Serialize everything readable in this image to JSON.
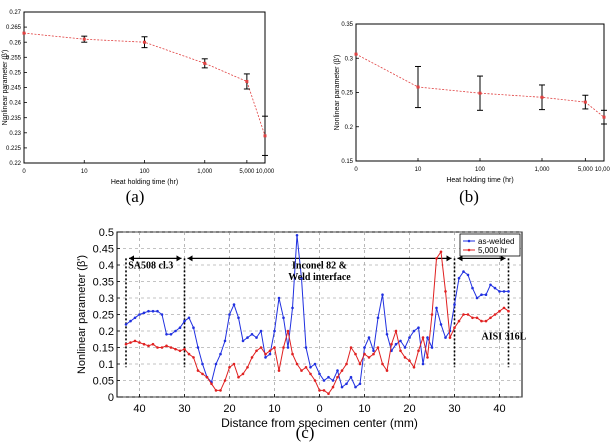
{
  "captions": {
    "a": "(a)",
    "b": "(b)",
    "c": "(c)"
  },
  "chart_data": [
    {
      "id": "a",
      "type": "line",
      "xscale": "log",
      "xlabel": "Heat holding time (hr)",
      "ylabel": "Nonlinear parameter (β')",
      "xlim": [
        1,
        10000
      ],
      "ylim": [
        0.22,
        0.27
      ],
      "xticks": [
        1,
        10,
        100,
        1000,
        5000,
        10000
      ],
      "xtick_labels": [
        "0",
        "10",
        "100",
        "1,000",
        "5,000",
        "10,000"
      ],
      "yticks": [
        0.22,
        0.225,
        0.23,
        0.235,
        0.24,
        0.245,
        0.25,
        0.255,
        0.26,
        0.265,
        0.27
      ],
      "ytick_labels": [
        "0.22",
        "0.225",
        "0.23",
        "0.235",
        "0.24",
        "0.245",
        "0.25",
        "0.255",
        "0.26",
        "0.265",
        "0.27"
      ],
      "grid": false,
      "series": [
        {
          "x": [
            1,
            10,
            100,
            1000,
            5000,
            10000
          ],
          "y": [
            0.263,
            0.261,
            0.26,
            0.253,
            0.247,
            0.229
          ],
          "err": [
            0.0,
            0.001,
            0.0018,
            0.0015,
            0.0025,
            0.0065
          ],
          "color": "#e04040"
        }
      ]
    },
    {
      "id": "b",
      "type": "line",
      "xscale": "log",
      "xlabel": "Heat holding time (hr)",
      "ylabel": "Nonlinear parameter (β')",
      "xlim": [
        1,
        10000
      ],
      "ylim": [
        0.15,
        0.35
      ],
      "xticks": [
        1,
        10,
        100,
        1000,
        5000,
        10000
      ],
      "xtick_labels": [
        "0",
        "10",
        "100",
        "1,000",
        "5,000",
        "10,000"
      ],
      "yticks": [
        0.15,
        0.2,
        0.25,
        0.3,
        0.35
      ],
      "ytick_labels": [
        "0.15",
        "0.2",
        "0.25",
        "0.3",
        "0.35"
      ],
      "grid": false,
      "series": [
        {
          "x": [
            1,
            10,
            100,
            1000,
            5000,
            10000
          ],
          "y": [
            0.306,
            0.258,
            0.249,
            0.243,
            0.236,
            0.214
          ],
          "err": [
            0.0,
            0.03,
            0.025,
            0.018,
            0.01,
            0.01
          ],
          "color": "#e04040"
        }
      ]
    },
    {
      "id": "c",
      "type": "line",
      "xlabel": "Distance from specimen center (mm)",
      "ylabel": "Nonlinear parameter (β')",
      "xlim": [
        -45,
        45
      ],
      "ylim": [
        0,
        0.5
      ],
      "xticks": [
        -40,
        -30,
        -20,
        -10,
        0,
        10,
        20,
        30,
        40
      ],
      "xtick_labels": [
        "40",
        "30",
        "20",
        "10",
        "0",
        "10",
        "20",
        "30",
        "40"
      ],
      "yticks": [
        0,
        0.05,
        0.1,
        0.15,
        0.2,
        0.25,
        0.3,
        0.35,
        0.4,
        0.45,
        0.5
      ],
      "ytick_labels": [
        "0",
        "0.05",
        "0.1",
        "0.15",
        "0.2",
        "0.25",
        "0.3",
        "0.35",
        "0.4",
        "0.45",
        "0.5"
      ],
      "grid": true,
      "legend": "top-right",
      "annotations": [
        {
          "text": "SA508 cl.3",
          "x": -42.5,
          "y": 0.39
        },
        {
          "text": "Inconel 82 &",
          "x": 0,
          "y": 0.39
        },
        {
          "text": "Weld interface",
          "x": 0,
          "y": 0.355
        },
        {
          "text": "AISI 316L",
          "x": 36,
          "y": 0.175
        }
      ],
      "regions": [
        {
          "from": -43,
          "to": -30
        },
        {
          "from": -30,
          "to": 30
        },
        {
          "from": 30,
          "to": 42
        }
      ],
      "series": [
        {
          "name": "as-welded",
          "color": "#2030e0",
          "x": [
            -43,
            -42,
            -41,
            -40,
            -39,
            -38,
            -37,
            -36,
            -35,
            -34,
            -33,
            -32,
            -31,
            -30,
            -29,
            -28,
            -27,
            -26,
            -25,
            -24,
            -23,
            -22,
            -21,
            -20,
            -19,
            -18,
            -17,
            -16,
            -15,
            -14,
            -13,
            -12,
            -11,
            -10,
            -9,
            -8,
            -7,
            -6,
            -5,
            -4,
            -3,
            -2,
            -1,
            0,
            1,
            2,
            3,
            4,
            5,
            6,
            7,
            8,
            9,
            10,
            11,
            12,
            13,
            14,
            15,
            16,
            17,
            18,
            19,
            20,
            21,
            22,
            23,
            24,
            25,
            26,
            27,
            28,
            29,
            30,
            31,
            32,
            33,
            34,
            35,
            36,
            37,
            38,
            39,
            40,
            41,
            42
          ],
          "y": [
            0.22,
            0.23,
            0.24,
            0.25,
            0.255,
            0.26,
            0.26,
            0.26,
            0.25,
            0.19,
            0.19,
            0.2,
            0.21,
            0.23,
            0.24,
            0.21,
            0.15,
            0.1,
            0.06,
            0.045,
            0.1,
            0.13,
            0.17,
            0.25,
            0.28,
            0.24,
            0.17,
            0.18,
            0.19,
            0.18,
            0.2,
            0.12,
            0.13,
            0.2,
            0.3,
            0.24,
            0.15,
            0.27,
            0.49,
            0.36,
            0.15,
            0.09,
            0.1,
            0.07,
            0.05,
            0.06,
            0.05,
            0.08,
            0.03,
            0.04,
            0.06,
            0.03,
            0.04,
            0.15,
            0.18,
            0.14,
            0.24,
            0.31,
            0.19,
            0.14,
            0.16,
            0.17,
            0.15,
            0.18,
            0.2,
            0.21,
            0.1,
            0.18,
            0.15,
            0.27,
            0.22,
            0.18,
            0.2,
            0.28,
            0.36,
            0.38,
            0.37,
            0.33,
            0.3,
            0.31,
            0.31,
            0.34,
            0.33,
            0.32,
            0.32,
            0.32
          ]
        },
        {
          "name": "5,000 hr",
          "color": "#e02020",
          "x": [
            -43,
            -42,
            -41,
            -40,
            -39,
            -38,
            -37,
            -36,
            -35,
            -34,
            -33,
            -32,
            -31,
            -30,
            -29,
            -28,
            -27,
            -26,
            -25,
            -24,
            -23,
            -22,
            -21,
            -20,
            -19,
            -18,
            -17,
            -16,
            -15,
            -14,
            -13,
            -12,
            -11,
            -10,
            -9,
            -8,
            -7,
            -6,
            -5,
            -4,
            -3,
            -2,
            -1,
            0,
            1,
            2,
            3,
            4,
            5,
            6,
            7,
            8,
            9,
            10,
            11,
            12,
            13,
            14,
            15,
            16,
            17,
            18,
            19,
            20,
            21,
            22,
            23,
            24,
            25,
            26,
            27,
            28,
            29,
            30,
            31,
            32,
            33,
            34,
            35,
            36,
            37,
            38,
            39,
            40,
            41,
            42
          ],
          "y": [
            0.16,
            0.165,
            0.17,
            0.165,
            0.16,
            0.155,
            0.16,
            0.15,
            0.15,
            0.155,
            0.15,
            0.145,
            0.14,
            0.145,
            0.13,
            0.12,
            0.08,
            0.07,
            0.06,
            0.04,
            0.02,
            0.02,
            0.05,
            0.09,
            0.1,
            0.06,
            0.07,
            0.09,
            0.12,
            0.14,
            0.15,
            0.13,
            0.14,
            0.15,
            0.08,
            0.15,
            0.2,
            0.13,
            0.1,
            0.08,
            0.09,
            0.07,
            0.05,
            0.02,
            0.02,
            0.01,
            0.03,
            0.06,
            0.08,
            0.1,
            0.15,
            0.13,
            0.1,
            0.13,
            0.12,
            0.13,
            0.15,
            0.1,
            0.08,
            0.16,
            0.2,
            0.14,
            0.12,
            0.11,
            0.09,
            0.14,
            0.18,
            0.12,
            0.25,
            0.42,
            0.44,
            0.32,
            0.18,
            0.21,
            0.23,
            0.25,
            0.25,
            0.24,
            0.24,
            0.23,
            0.23,
            0.24,
            0.25,
            0.26,
            0.27,
            0.26
          ]
        }
      ]
    }
  ]
}
